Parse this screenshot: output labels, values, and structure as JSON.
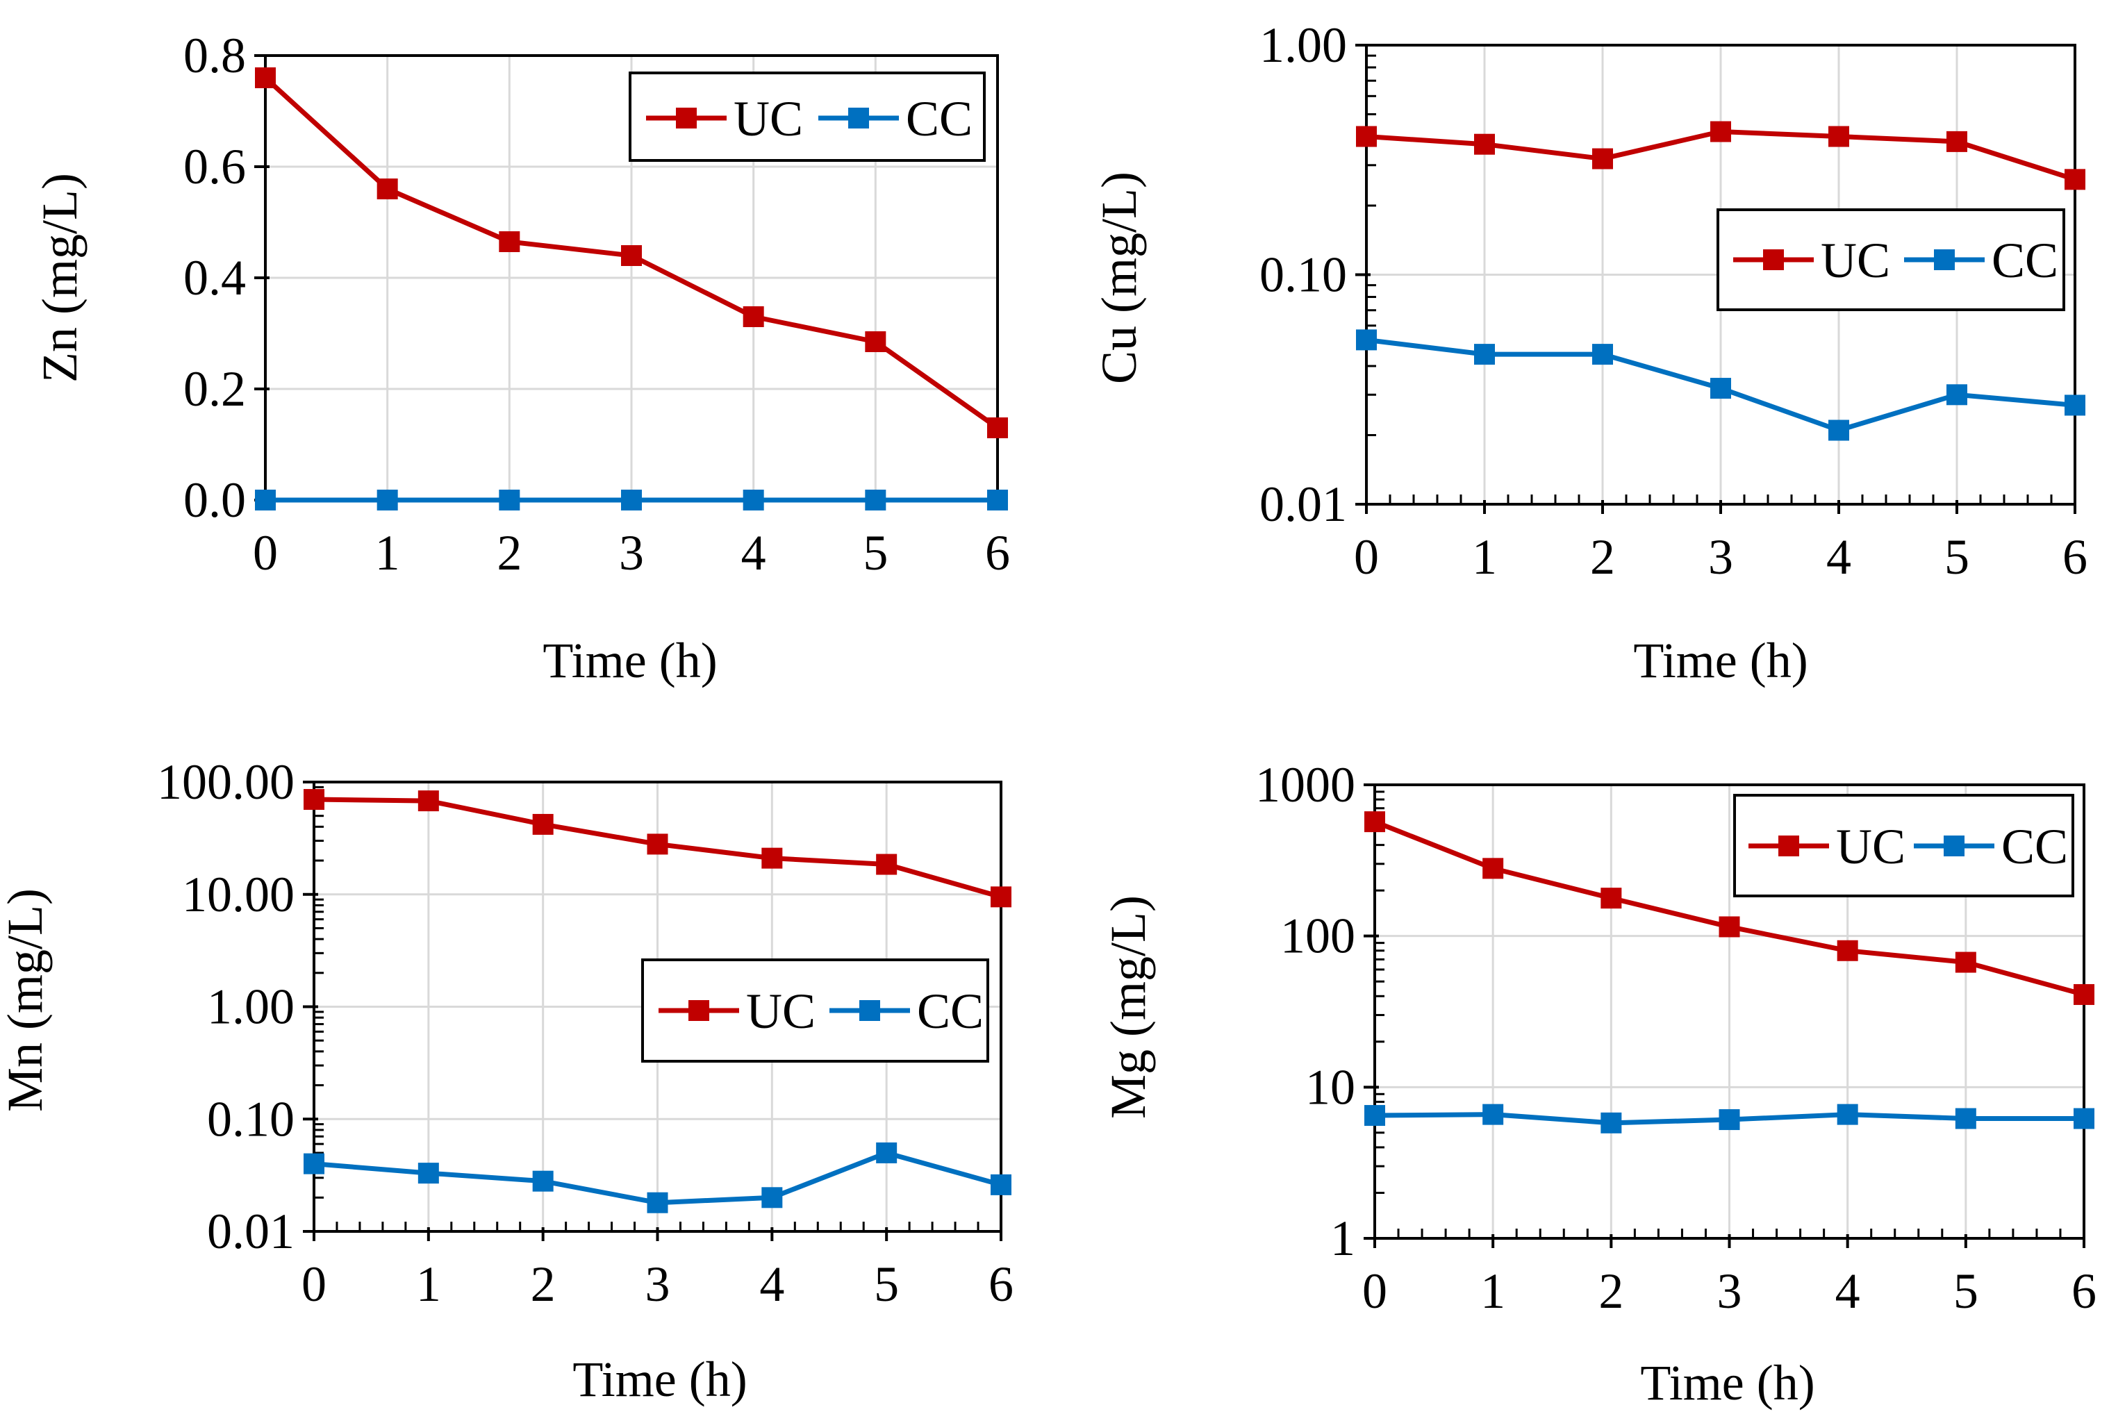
{
  "colors": {
    "uc": "#C00000",
    "cc": "#0070C0",
    "grid": "#D9D9D9",
    "axis": "#000000"
  },
  "chart_data": [
    {
      "id": "zn",
      "type": "line",
      "ylabel": "Zn (mg/L)",
      "xlabel": "Time (h)",
      "scale": "linear",
      "ylim": [
        0,
        0.8
      ],
      "yticks": [
        0,
        0.2,
        0.4,
        0.6,
        0.8
      ],
      "ytick_labels": [
        "0.0",
        "0.2",
        "0.4",
        "0.6",
        "0.8"
      ],
      "x": [
        0,
        1,
        2,
        3,
        4,
        5,
        6
      ],
      "series": [
        {
          "name": "UC",
          "color": "#C00000",
          "values": [
            0.76,
            0.56,
            0.465,
            0.44,
            0.33,
            0.285,
            0.13
          ]
        },
        {
          "name": "CC",
          "color": "#0070C0",
          "values": [
            0.0,
            0.0,
            0.0,
            0.0,
            0.0,
            0.0,
            0.0
          ]
        }
      ],
      "legend": "top-right"
    },
    {
      "id": "cu",
      "type": "line",
      "ylabel": "Cu (mg/L)",
      "xlabel": "Time (h)",
      "scale": "log",
      "ylim": [
        0.01,
        1
      ],
      "yticks": [
        0.01,
        0.1,
        1
      ],
      "ytick_labels": [
        "0.01",
        "0.10",
        "1.00"
      ],
      "x": [
        0,
        1,
        2,
        3,
        4,
        5,
        6
      ],
      "series": [
        {
          "name": "UC",
          "color": "#C00000",
          "values": [
            0.4,
            0.37,
            0.32,
            0.42,
            0.4,
            0.38,
            0.26
          ]
        },
        {
          "name": "CC",
          "color": "#0070C0",
          "values": [
            0.052,
            0.045,
            0.045,
            0.032,
            0.021,
            0.03,
            0.027
          ]
        }
      ],
      "legend": "upper-right"
    },
    {
      "id": "mn",
      "type": "line",
      "ylabel": "Mn (mg/L)",
      "xlabel": "Time (h)",
      "scale": "log",
      "ylim": [
        0.01,
        100
      ],
      "yticks": [
        0.01,
        0.1,
        1,
        10,
        100
      ],
      "ytick_labels": [
        "0.01",
        "0.10",
        "1.00",
        "10.00",
        "100.00"
      ],
      "x": [
        0,
        1,
        2,
        3,
        4,
        5,
        6
      ],
      "series": [
        {
          "name": "UC",
          "color": "#C00000",
          "values": [
            70,
            68,
            42,
            28,
            21,
            18.5,
            9.5
          ]
        },
        {
          "name": "CC",
          "color": "#0070C0",
          "values": [
            0.04,
            0.033,
            0.028,
            0.018,
            0.02,
            0.05,
            0.026
          ]
        }
      ],
      "legend": "middle-right"
    },
    {
      "id": "mg",
      "type": "line",
      "ylabel": "Mg (mg/L)",
      "xlabel": "Time (h)",
      "scale": "log",
      "ylim": [
        1,
        1000
      ],
      "yticks": [
        1,
        10,
        100,
        1000
      ],
      "ytick_labels": [
        "1",
        "10",
        "100",
        "1000"
      ],
      "x": [
        0,
        1,
        2,
        3,
        4,
        5,
        6
      ],
      "series": [
        {
          "name": "UC",
          "color": "#C00000",
          "values": [
            570,
            280,
            178,
            115,
            80,
            67,
            41
          ]
        },
        {
          "name": "CC",
          "color": "#0070C0",
          "values": [
            6.5,
            6.6,
            5.8,
            6.1,
            6.6,
            6.2,
            6.2
          ]
        }
      ],
      "legend": "top-right"
    }
  ]
}
